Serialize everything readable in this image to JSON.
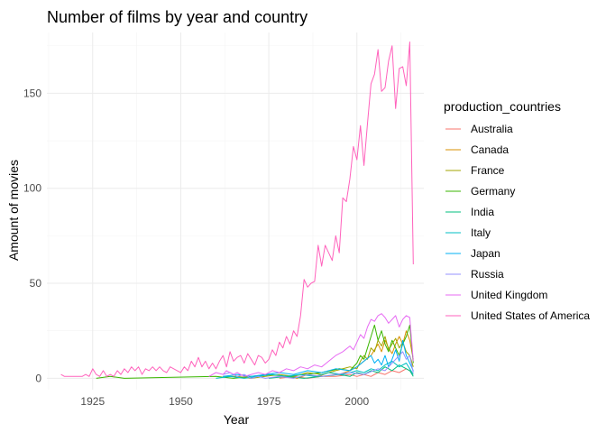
{
  "chart_data": {
    "type": "line",
    "title": "Number of films by year and country",
    "xlabel": "Year",
    "ylabel": "Amount of movies",
    "xlim": [
      1912,
      2019
    ],
    "ylim": [
      -6,
      182
    ],
    "x_ticks": [
      1925,
      1950,
      1975,
      2000
    ],
    "y_ticks": [
      0,
      50,
      100,
      150
    ],
    "grid": true,
    "legend": {
      "title": "production_countries",
      "position": "right"
    },
    "series": [
      {
        "name": "Australia",
        "color": "#F8766D",
        "points": [
          [
            1978,
            0
          ],
          [
            1982,
            1
          ],
          [
            1986,
            0
          ],
          [
            1990,
            1
          ],
          [
            1994,
            1
          ],
          [
            1998,
            2
          ],
          [
            2000,
            1
          ],
          [
            2002,
            2
          ],
          [
            2004,
            1
          ],
          [
            2006,
            3
          ],
          [
            2008,
            2
          ],
          [
            2010,
            4
          ],
          [
            2012,
            3
          ],
          [
            2014,
            5
          ],
          [
            2015,
            4
          ],
          [
            2016,
            2
          ]
        ]
      },
      {
        "name": "Canada",
        "color": "#D89000",
        "points": [
          [
            1980,
            1
          ],
          [
            1983,
            0
          ],
          [
            1986,
            2
          ],
          [
            1989,
            1
          ],
          [
            1992,
            3
          ],
          [
            1995,
            2
          ],
          [
            1998,
            4
          ],
          [
            2000,
            6
          ],
          [
            2002,
            9
          ],
          [
            2004,
            12
          ],
          [
            2005,
            15
          ],
          [
            2006,
            18
          ],
          [
            2007,
            14
          ],
          [
            2008,
            20
          ],
          [
            2009,
            16
          ],
          [
            2010,
            13
          ],
          [
            2011,
            18
          ],
          [
            2012,
            22
          ],
          [
            2013,
            18
          ],
          [
            2014,
            25
          ],
          [
            2015,
            20
          ],
          [
            2016,
            10
          ]
        ]
      },
      {
        "name": "France",
        "color": "#A3A500",
        "points": [
          [
            1962,
            1
          ],
          [
            1966,
            1
          ],
          [
            1970,
            0
          ],
          [
            1974,
            1
          ],
          [
            1978,
            2
          ],
          [
            1982,
            1
          ],
          [
            1986,
            3
          ],
          [
            1990,
            2
          ],
          [
            1994,
            4
          ],
          [
            1998,
            6
          ],
          [
            2000,
            5
          ],
          [
            2001,
            9
          ],
          [
            2002,
            12
          ],
          [
            2003,
            10
          ],
          [
            2004,
            16
          ],
          [
            2005,
            14
          ],
          [
            2006,
            20
          ],
          [
            2007,
            17
          ],
          [
            2008,
            22
          ],
          [
            2009,
            15
          ],
          [
            2010,
            18
          ],
          [
            2011,
            21
          ],
          [
            2012,
            16
          ],
          [
            2013,
            19
          ],
          [
            2014,
            14
          ],
          [
            2015,
            12
          ],
          [
            2016,
            6
          ]
        ]
      },
      {
        "name": "Germany",
        "color": "#39B600",
        "points": [
          [
            1926,
            0
          ],
          [
            1930,
            1
          ],
          [
            1934,
            0
          ],
          [
            1960,
            1
          ],
          [
            1965,
            0
          ],
          [
            1970,
            1
          ],
          [
            1975,
            2
          ],
          [
            1980,
            1
          ],
          [
            1985,
            2
          ],
          [
            1990,
            3
          ],
          [
            1995,
            5
          ],
          [
            1998,
            4
          ],
          [
            2000,
            8
          ],
          [
            2001,
            12
          ],
          [
            2002,
            10
          ],
          [
            2003,
            16
          ],
          [
            2004,
            22
          ],
          [
            2005,
            28
          ],
          [
            2006,
            20
          ],
          [
            2007,
            25
          ],
          [
            2008,
            18
          ],
          [
            2009,
            14
          ],
          [
            2010,
            20
          ],
          [
            2011,
            16
          ],
          [
            2012,
            12
          ],
          [
            2013,
            18
          ],
          [
            2014,
            22
          ],
          [
            2015,
            28
          ],
          [
            2016,
            8
          ]
        ]
      },
      {
        "name": "India",
        "color": "#00BF7D",
        "points": [
          [
            1975,
            0
          ],
          [
            1980,
            1
          ],
          [
            1985,
            0
          ],
          [
            1990,
            1
          ],
          [
            1995,
            2
          ],
          [
            1998,
            1
          ],
          [
            2000,
            3
          ],
          [
            2002,
            2
          ],
          [
            2004,
            4
          ],
          [
            2006,
            3
          ],
          [
            2008,
            6
          ],
          [
            2010,
            4
          ],
          [
            2012,
            7
          ],
          [
            2014,
            5
          ],
          [
            2015,
            4
          ],
          [
            2016,
            1
          ]
        ]
      },
      {
        "name": "Italy",
        "color": "#00BFC4",
        "points": [
          [
            1960,
            0
          ],
          [
            1964,
            1
          ],
          [
            1968,
            0
          ],
          [
            1972,
            1
          ],
          [
            1976,
            2
          ],
          [
            1980,
            1
          ],
          [
            1984,
            2
          ],
          [
            1988,
            1
          ],
          [
            1992,
            3
          ],
          [
            1996,
            2
          ],
          [
            2000,
            4
          ],
          [
            2002,
            3
          ],
          [
            2004,
            5
          ],
          [
            2006,
            4
          ],
          [
            2008,
            7
          ],
          [
            2010,
            9
          ],
          [
            2012,
            6
          ],
          [
            2014,
            8
          ],
          [
            2015,
            5
          ],
          [
            2016,
            2
          ]
        ]
      },
      {
        "name": "Japan",
        "color": "#00B0F6",
        "points": [
          [
            1962,
            1
          ],
          [
            1966,
            2
          ],
          [
            1970,
            1
          ],
          [
            1974,
            2
          ],
          [
            1978,
            3
          ],
          [
            1982,
            2
          ],
          [
            1986,
            4
          ],
          [
            1990,
            3
          ],
          [
            1994,
            5
          ],
          [
            1998,
            4
          ],
          [
            2000,
            6
          ],
          [
            2002,
            9
          ],
          [
            2004,
            12
          ],
          [
            2005,
            8
          ],
          [
            2006,
            10
          ],
          [
            2007,
            7
          ],
          [
            2008,
            12
          ],
          [
            2009,
            6
          ],
          [
            2010,
            10
          ],
          [
            2011,
            15
          ],
          [
            2012,
            9
          ],
          [
            2013,
            20
          ],
          [
            2014,
            12
          ],
          [
            2015,
            8
          ],
          [
            2016,
            4
          ]
        ]
      },
      {
        "name": "Russia",
        "color": "#9590FF",
        "points": [
          [
            1962,
            2
          ],
          [
            1964,
            3
          ],
          [
            1966,
            1
          ],
          [
            1968,
            2
          ],
          [
            1970,
            0
          ],
          [
            1972,
            1
          ],
          [
            1974,
            0
          ],
          [
            1978,
            1
          ],
          [
            1982,
            0
          ],
          [
            1986,
            2
          ],
          [
            1990,
            1
          ],
          [
            1994,
            2
          ],
          [
            1998,
            3
          ],
          [
            2002,
            2
          ],
          [
            2006,
            5
          ],
          [
            2008,
            4
          ],
          [
            2010,
            8
          ],
          [
            2012,
            12
          ],
          [
            2013,
            14
          ],
          [
            2014,
            10
          ],
          [
            2015,
            12
          ],
          [
            2016,
            3
          ]
        ]
      },
      {
        "name": "United Kingdom",
        "color": "#E76BF3",
        "points": [
          [
            1958,
            1
          ],
          [
            1960,
            3
          ],
          [
            1962,
            2
          ],
          [
            1963,
            4
          ],
          [
            1965,
            2
          ],
          [
            1966,
            3
          ],
          [
            1968,
            1
          ],
          [
            1970,
            2
          ],
          [
            1972,
            3
          ],
          [
            1974,
            2
          ],
          [
            1976,
            4
          ],
          [
            1978,
            3
          ],
          [
            1980,
            5
          ],
          [
            1982,
            4
          ],
          [
            1984,
            6
          ],
          [
            1986,
            5
          ],
          [
            1988,
            7
          ],
          [
            1990,
            6
          ],
          [
            1992,
            9
          ],
          [
            1994,
            12
          ],
          [
            1996,
            14
          ],
          [
            1998,
            17
          ],
          [
            1999,
            15
          ],
          [
            2000,
            19
          ],
          [
            2001,
            23
          ],
          [
            2002,
            21
          ],
          [
            2003,
            27
          ],
          [
            2004,
            31
          ],
          [
            2005,
            30
          ],
          [
            2006,
            33
          ],
          [
            2007,
            34
          ],
          [
            2008,
            32
          ],
          [
            2009,
            29
          ],
          [
            2010,
            31
          ],
          [
            2011,
            33
          ],
          [
            2012,
            27
          ],
          [
            2013,
            31
          ],
          [
            2014,
            33
          ],
          [
            2015,
            32
          ],
          [
            2016,
            9
          ]
        ]
      },
      {
        "name": "United States of America",
        "color": "#FF62BC",
        "points": [
          [
            1916,
            2
          ],
          [
            1917,
            1
          ],
          [
            1918,
            1
          ],
          [
            1919,
            1
          ],
          [
            1920,
            1
          ],
          [
            1921,
            1
          ],
          [
            1922,
            1
          ],
          [
            1923,
            2
          ],
          [
            1924,
            1
          ],
          [
            1925,
            5
          ],
          [
            1926,
            2
          ],
          [
            1927,
            1
          ],
          [
            1928,
            4
          ],
          [
            1929,
            1
          ],
          [
            1930,
            2
          ],
          [
            1931,
            1
          ],
          [
            1932,
            4
          ],
          [
            1933,
            2
          ],
          [
            1934,
            5
          ],
          [
            1935,
            3
          ],
          [
            1936,
            6
          ],
          [
            1937,
            4
          ],
          [
            1938,
            6
          ],
          [
            1939,
            2
          ],
          [
            1940,
            5
          ],
          [
            1941,
            4
          ],
          [
            1942,
            6
          ],
          [
            1943,
            4
          ],
          [
            1944,
            6
          ],
          [
            1945,
            4
          ],
          [
            1946,
            3
          ],
          [
            1947,
            6
          ],
          [
            1948,
            5
          ],
          [
            1949,
            4
          ],
          [
            1950,
            3
          ],
          [
            1951,
            6
          ],
          [
            1952,
            4
          ],
          [
            1953,
            9
          ],
          [
            1954,
            6
          ],
          [
            1955,
            11
          ],
          [
            1956,
            6
          ],
          [
            1957,
            9
          ],
          [
            1958,
            5
          ],
          [
            1959,
            8
          ],
          [
            1960,
            5
          ],
          [
            1961,
            9
          ],
          [
            1962,
            12
          ],
          [
            1963,
            6
          ],
          [
            1964,
            14
          ],
          [
            1965,
            9
          ],
          [
            1966,
            11
          ],
          [
            1967,
            12
          ],
          [
            1968,
            8
          ],
          [
            1969,
            13
          ],
          [
            1970,
            10
          ],
          [
            1971,
            7
          ],
          [
            1972,
            12
          ],
          [
            1973,
            11
          ],
          [
            1974,
            8
          ],
          [
            1975,
            10
          ],
          [
            1976,
            15
          ],
          [
            1977,
            12
          ],
          [
            1978,
            19
          ],
          [
            1979,
            16
          ],
          [
            1980,
            22
          ],
          [
            1981,
            18
          ],
          [
            1982,
            25
          ],
          [
            1983,
            22
          ],
          [
            1984,
            33
          ],
          [
            1985,
            52
          ],
          [
            1986,
            48
          ],
          [
            1987,
            50
          ],
          [
            1988,
            51
          ],
          [
            1989,
            70
          ],
          [
            1990,
            59
          ],
          [
            1991,
            70
          ],
          [
            1992,
            66
          ],
          [
            1993,
            62
          ],
          [
            1994,
            75
          ],
          [
            1995,
            66
          ],
          [
            1996,
            95
          ],
          [
            1997,
            93
          ],
          [
            1998,
            105
          ],
          [
            1999,
            122
          ],
          [
            2000,
            115
          ],
          [
            2001,
            133
          ],
          [
            2002,
            112
          ],
          [
            2003,
            134
          ],
          [
            2004,
            155
          ],
          [
            2005,
            160
          ],
          [
            2006,
            173
          ],
          [
            2007,
            151
          ],
          [
            2008,
            153
          ],
          [
            2009,
            167
          ],
          [
            2010,
            175
          ],
          [
            2011,
            142
          ],
          [
            2012,
            163
          ],
          [
            2013,
            164
          ],
          [
            2014,
            154
          ],
          [
            2015,
            177
          ],
          [
            2016,
            60
          ]
        ]
      }
    ]
  }
}
